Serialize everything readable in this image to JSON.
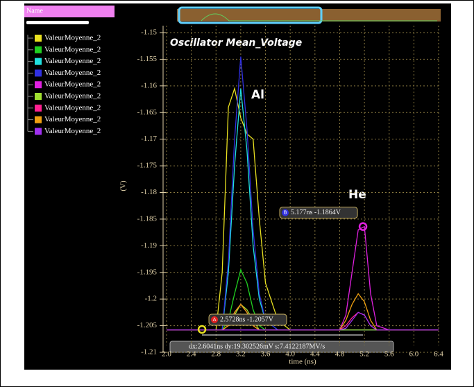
{
  "chart_data": {
    "type": "line",
    "title": "Oscillator Mean_Voltage",
    "legend_header": "Name",
    "y_label": "(V)",
    "x_label": "time (ns)",
    "annotations": [
      "Al",
      "He"
    ],
    "x": [
      2.0,
      2.6,
      2.8,
      2.9,
      3.0,
      3.1,
      3.2,
      3.3,
      3.4,
      3.5,
      3.6,
      3.8,
      4.0,
      4.6,
      4.8,
      4.9,
      5.0,
      5.1,
      5.2,
      5.3,
      5.4,
      5.6,
      6.4
    ],
    "series": [
      {
        "name": "ValeurMoyenne_2",
        "color": "#e8e020",
        "values": [
          -1.2058,
          -1.2058,
          -1.2058,
          -1.195,
          -1.164,
          -1.1605,
          -1.166,
          -1.169,
          -1.17,
          -1.185,
          -1.197,
          -1.204,
          -1.2058,
          -1.2058,
          -1.2058,
          -1.2058,
          -1.2058,
          -1.2058,
          -1.2058,
          -1.2058,
          -1.2058,
          -1.2058,
          -1.2058
        ]
      },
      {
        "name": "ValeurMoyenne_2",
        "color": "#20d020",
        "values": [
          -1.2058,
          -1.2058,
          -1.2058,
          -1.2058,
          -1.204,
          -1.199,
          -1.1945,
          -1.197,
          -1.202,
          -1.205,
          -1.2058,
          -1.2058,
          -1.2058,
          -1.2058,
          -1.2058,
          -1.2058,
          -1.2058,
          -1.2058,
          -1.2058,
          -1.2058,
          -1.2058,
          -1.2058,
          -1.2058
        ]
      },
      {
        "name": "ValeurMoyenne_2",
        "color": "#20e0e0",
        "values": [
          -1.2058,
          -1.2058,
          -1.2058,
          -1.2058,
          -1.195,
          -1.175,
          -1.1605,
          -1.172,
          -1.19,
          -1.2,
          -1.204,
          -1.2058,
          -1.2058,
          -1.2058,
          -1.2058,
          -1.2058,
          -1.2058,
          -1.2058,
          -1.2058,
          -1.2058,
          -1.2058,
          -1.2058,
          -1.2058
        ]
      },
      {
        "name": "ValeurMoyenne_2",
        "color": "#3030e0",
        "values": [
          -1.2058,
          -1.2058,
          -1.2058,
          -1.2058,
          -1.193,
          -1.17,
          -1.1545,
          -1.168,
          -1.187,
          -1.199,
          -1.204,
          -1.2058,
          -1.2058,
          -1.2058,
          -1.2058,
          -1.2058,
          -1.2058,
          -1.2058,
          -1.2058,
          -1.2058,
          -1.2058,
          -1.2058,
          -1.2058
        ]
      },
      {
        "name": "ValeurMoyenne_2",
        "color": "#e020e0",
        "values": [
          -1.2058,
          -1.2058,
          -1.2058,
          -1.2058,
          -1.2058,
          -1.2058,
          -1.2058,
          -1.2058,
          -1.2058,
          -1.2058,
          -1.2058,
          -1.2058,
          -1.2058,
          -1.2058,
          -1.2058,
          -1.203,
          -1.195,
          -1.187,
          -1.1864,
          -1.199,
          -1.205,
          -1.2058,
          -1.2058
        ]
      },
      {
        "name": "ValeurMoyenne_2",
        "color": "#a0e030",
        "values": [
          -1.2058,
          -1.2058,
          -1.2058,
          -1.2058,
          -1.205,
          -1.203,
          -1.201,
          -1.202,
          -1.204,
          -1.2058,
          -1.2058,
          -1.2058,
          -1.2058,
          -1.2058,
          -1.2058,
          -1.2058,
          -1.2058,
          -1.2058,
          -1.2058,
          -1.2058,
          -1.2058,
          -1.2058,
          -1.2058
        ]
      },
      {
        "name": "ValeurMoyenne_2",
        "color": "#ff2090",
        "values": [
          -1.2058,
          -1.2058,
          -1.2058,
          -1.2058,
          -1.205,
          -1.2025,
          -1.201,
          -1.2025,
          -1.205,
          -1.2058,
          -1.2058,
          -1.2058,
          -1.2058,
          -1.2058,
          -1.2058,
          -1.205,
          -1.2035,
          -1.2025,
          -1.203,
          -1.205,
          -1.2058,
          -1.2058,
          -1.2058
        ]
      },
      {
        "name": "ValeurMoyenne_2",
        "color": "#f0a010",
        "values": [
          -1.2058,
          -1.2058,
          -1.2058,
          -1.2058,
          -1.205,
          -1.2025,
          -1.201,
          -1.2025,
          -1.205,
          -1.2058,
          -1.2058,
          -1.2058,
          -1.2058,
          -1.2058,
          -1.2058,
          -1.204,
          -1.201,
          -1.199,
          -1.2005,
          -1.204,
          -1.2058,
          -1.2058,
          -1.2058
        ]
      },
      {
        "name": "ValeurMoyenne_2",
        "color": "#a030f0",
        "values": [
          -1.2058,
          -1.2058,
          -1.2058,
          -1.2058,
          -1.2058,
          -1.2058,
          -1.2058,
          -1.2058,
          -1.2058,
          -1.2058,
          -1.2058,
          -1.2058,
          -1.2058,
          -1.2058,
          -1.2058,
          -1.2055,
          -1.204,
          -1.2025,
          -1.203,
          -1.205,
          -1.2058,
          -1.2058,
          -1.2058
        ]
      }
    ],
    "markers": [
      {
        "label": "A",
        "x": 2.5728,
        "y": -1.2057,
        "text": "2.5728ns -1.2057V",
        "color": "#e8e020"
      },
      {
        "label": "B",
        "x": 5.177,
        "y": -1.1864,
        "text": "5.177ns -1.1864V",
        "color": "#e020e0"
      }
    ],
    "delta_text": "dx:2.6041ns dy:19.302526mV s:7.4122187MV/s",
    "xlim": [
      2.0,
      6.4
    ],
    "xticks": [
      {
        "value": 2.0,
        "label": "2.0"
      },
      2.4,
      2.8,
      3.2,
      3.6,
      {
        "value": 4.0,
        "label": "4.0"
      },
      4.4,
      4.8,
      5.2,
      5.6,
      {
        "value": 6.0,
        "label": "6.0"
      },
      6.4
    ],
    "ylim": [
      -1.21,
      -1.15
    ],
    "yticks": [
      -1.15,
      -1.155,
      -1.16,
      -1.165,
      -1.17,
      -1.175,
      -1.18,
      -1.185,
      -1.19,
      -1.195,
      -1.2,
      -1.205,
      -1.21
    ],
    "grid": true
  }
}
